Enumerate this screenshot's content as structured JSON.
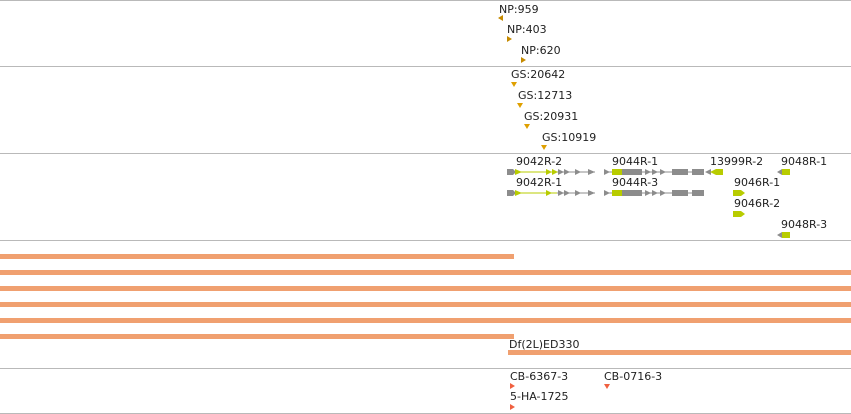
{
  "colors": {
    "separator": "#b9b9b9",
    "np_marker": "#c58a00",
    "gs_marker": "#dfa000",
    "transcript_gray": "#8c8c8c",
    "transcript_green": "#b8cc00",
    "deletion_bar": "#f0a070",
    "insertion_marker": "#f06040"
  },
  "np_track": {
    "features": [
      {
        "label": "NP:959",
        "icon": "triangle-left-icon"
      },
      {
        "label": "NP:403",
        "icon": "triangle-right-icon"
      },
      {
        "label": "NP:620",
        "icon": "triangle-right-icon"
      }
    ]
  },
  "gs_track": {
    "features": [
      {
        "label": "GS:20642",
        "icon": "triangle-down-icon"
      },
      {
        "label": "GS:12713",
        "icon": "triangle-down-icon"
      },
      {
        "label": "GS:20931",
        "icon": "triangle-down-icon"
      },
      {
        "label": "GS:10919",
        "icon": "triangle-down-icon"
      }
    ]
  },
  "gene_track": {
    "transcripts": [
      {
        "label": "9042R-2"
      },
      {
        "label": "9042R-1"
      },
      {
        "label": "9044R-1"
      },
      {
        "label": "9044R-3"
      },
      {
        "label": "13999R-2"
      },
      {
        "label": "9048R-1"
      },
      {
        "label": "9046R-1"
      },
      {
        "label": "9046R-2"
      },
      {
        "label": "9048R-3"
      }
    ]
  },
  "deficiency_track": {
    "labeled_item": "Df(2L)ED330"
  },
  "insertion_track": {
    "features": [
      {
        "label": "CB-6367-3",
        "icon": "triangle-right-icon"
      },
      {
        "label": "CB-0716-3",
        "icon": "triangle-down-icon"
      },
      {
        "label": "5-HA-1725",
        "icon": "triangle-right-icon"
      }
    ]
  }
}
